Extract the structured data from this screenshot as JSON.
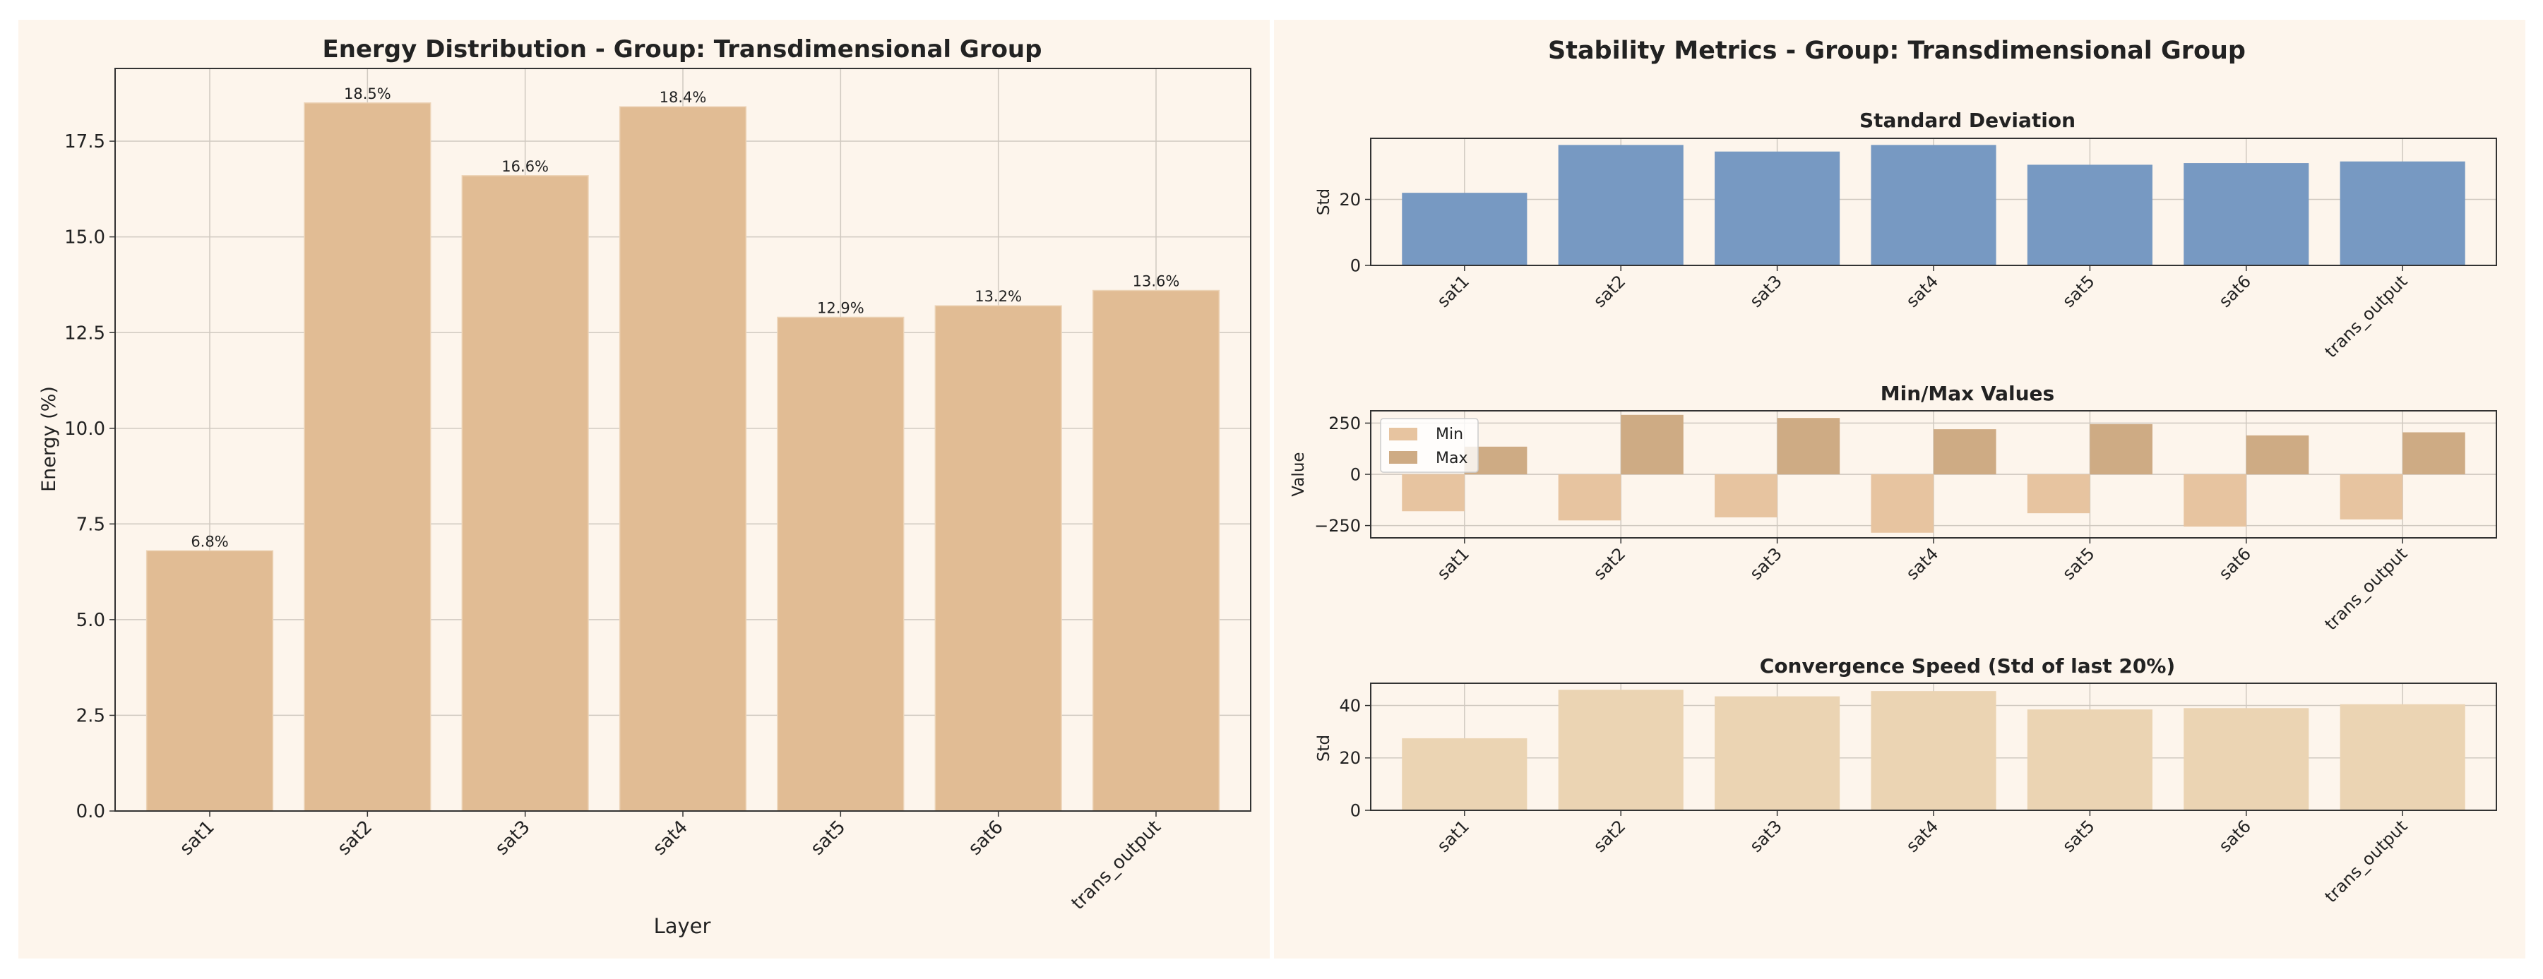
{
  "layers": [
    "sat1",
    "sat2",
    "sat3",
    "sat4",
    "sat5",
    "sat6",
    "trans_output"
  ],
  "colors": {
    "panel_bg": "#fdf5ec",
    "energy_bar": "#e1bc94",
    "std_bar": "#7799c2",
    "min_bar": "#e7c4a0",
    "max_bar": "#ceab84",
    "conv_bar": "#ebd4b3",
    "grid": "#d0c9c0",
    "axis": "#333333"
  },
  "chart_data": [
    {
      "type": "bar",
      "title": "Energy Distribution - Group: Transdimensional Group",
      "xlabel": "Layer",
      "ylabel": "Energy (%)",
      "categories": [
        "sat1",
        "sat2",
        "sat3",
        "sat4",
        "sat5",
        "sat6",
        "trans_output"
      ],
      "values": [
        6.8,
        18.5,
        16.6,
        18.4,
        12.9,
        13.2,
        13.6
      ],
      "data_labels": [
        "6.8%",
        "18.5%",
        "16.6%",
        "18.4%",
        "12.9%",
        "13.2%",
        "13.6%"
      ],
      "ylim": [
        0,
        19.4
      ],
      "yticks": [
        0.0,
        2.5,
        5.0,
        7.5,
        10.0,
        12.5,
        15.0,
        17.5
      ],
      "ytick_labels": [
        "0.0",
        "2.5",
        "5.0",
        "7.5",
        "10.0",
        "12.5",
        "15.0",
        "17.5"
      ],
      "grid": true
    },
    {
      "type": "bar",
      "suptitle": "Stability Metrics - Group: Transdimensional Group",
      "title": "Standard Deviation",
      "ylabel": "Std",
      "categories": [
        "sat1",
        "sat2",
        "sat3",
        "sat4",
        "sat5",
        "sat6",
        "trans_output"
      ],
      "values": [
        22,
        36.5,
        34.5,
        36.5,
        30.5,
        31,
        31.5
      ],
      "ylim": [
        0,
        38.5
      ],
      "yticks": [
        0,
        20
      ],
      "ytick_labels": [
        "0",
        "20"
      ],
      "grid": true
    },
    {
      "type": "bar",
      "title": "Min/Max Values",
      "ylabel": "Value",
      "categories": [
        "sat1",
        "sat2",
        "sat3",
        "sat4",
        "sat5",
        "sat6",
        "trans_output"
      ],
      "series": [
        {
          "name": "Min",
          "values": [
            -180,
            -225,
            -210,
            -285,
            -190,
            -255,
            -220
          ]
        },
        {
          "name": "Max",
          "values": [
            135,
            290,
            275,
            220,
            245,
            190,
            205
          ]
        }
      ],
      "ylim": [
        -310,
        310
      ],
      "yticks": [
        -250,
        0,
        250
      ],
      "ytick_labels": [
        "−250",
        "0",
        "250"
      ],
      "legend": "top-left",
      "grid": true
    },
    {
      "type": "bar",
      "title": "Convergence Speed (Std of last 20%)",
      "ylabel": "Std",
      "categories": [
        "sat1",
        "sat2",
        "sat3",
        "sat4",
        "sat5",
        "sat6",
        "trans_output"
      ],
      "values": [
        27.5,
        46,
        43.5,
        45.5,
        38.5,
        39,
        40.5
      ],
      "ylim": [
        0,
        48.5
      ],
      "yticks": [
        0,
        20,
        40
      ],
      "ytick_labels": [
        "0",
        "20",
        "40"
      ],
      "grid": true
    }
  ]
}
